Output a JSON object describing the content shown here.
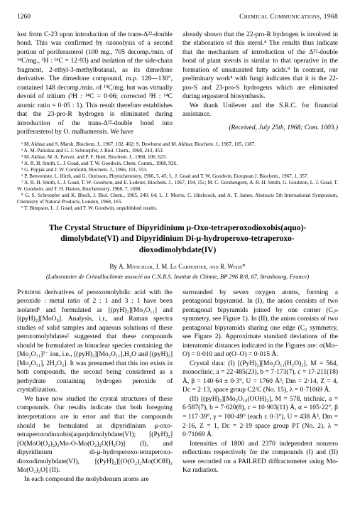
{
  "header": {
    "page_number": "1260",
    "running_title": "Chemical Communications, 1968"
  },
  "top_article": {
    "left_para": "lost from C-23 upon introduction of the trans-Δ²²-double bond. This was confirmed by ozonolysis of a second portion of poriferasterol (100 mg., 705 decomp./min. of ¹⁴C/mg., ³H : ¹⁴C = 12·93) and isolation of the side-chain fragment, 2-ethyl-3-methylbutanal, as its dimedone derivative. The dimedone compound, m.p. 128—130°, contained 148 decomp./min. of ¹⁴C/mg, but was virtually devoid of tritium (³H : ¹⁴C = 0·06; corrected ³H : ¹⁴C atomic ratio = 0·05 : 1). This result therefore establishes that the 23-pro-R hydrogen is eliminated during introduction of the trans-Δ²²-double bond into poriferasterol by O. malhamensis. We have",
    "right_para1": "already shown that the 22-pro-R hydrogen is involved in the elaboration of this sterol.⁴ The results thus indicate that the mechanism of introduction of the Δ²²-double bond of plant sterols is similar to that operative in the formation of unsaturated fatty acids.⁹ In contrast, our preliminary work⁴ with fungi indicates that it is the 22-pro-S and 23-pro-S hydrogens which are eliminated during ergosterol biosynthesis.",
    "right_para2": "We thank Unilever and the S.R.C. for financial assistance.",
    "received": "(Received, July 25th, 1968; Com. 1003.)"
  },
  "refs": {
    "r1": "¹ M. Akhtar and S. Marsh, Biochem. J., 1967, 102, 462; S. Dewhurst and M. Akhtar, Biochem. J., 1967, 105, 1187.",
    "r2": "² A. M. Paliokas and G. J. Schroepfer, J. Biol. Chem., 1968, 243, 453.",
    "r3": "³ M. Akhtar, M. A. Parvez, and P. F. Hunt, Biochem. J., 1968, 106, 623.",
    "r4": "⁴ A. R. H. Smith, L. J. Goad, and T. W. Goodwin, Chem. Comm., 1968, 926.",
    "r5": "⁵ G. Popjak and J. W. Cornforth, Biochem. J., 1966, 101, 553.",
    "r6": "⁶ P. Benveniste, L. Hirth, and G. Ourisson, Phytochemistry, 1966, 5, 45; L. J. Goad and T. W. Goodwin, European J. Biochem., 1967, 1, 357.",
    "r7": "⁷ A. R. H. Smith, L. J. Goad, T. W. Goodwin, and E. Lederer, Biochem. J., 1967, 104, 15c; M. C. Gershengorn, A. R. H. Smith, G. Goulston, L. J. Goad, T. W. Goodwin, and T. H. Haines, Biochemistry, 1968, 7, 1698.",
    "r8": "⁸ G. S. Schroepfer and K. Bloch, J. Biol. Chem., 1965, 240, 64; L. J. Morris, C. Hitchcock, and A. T. James, Abstracts 5th International Symposium, Chemistry of Natural Products, London, 1968, 165.",
    "r9": "⁹ T. Bimpson, L. J. Goad, and T. W. Goodwin, unpublished results."
  },
  "main_article": {
    "title": "The Crystal Structure of Dipyridinium μ-Oxo-tetraperoxodioxobis(aquo)-dimolybdate(VI) and Dipyridinium Di-μ-hydroperoxo-tetraperoxo-dioxodimolybdate(IV)",
    "authors_pre": "By ",
    "authors": "A. Mitschler, J. M. Le Carpentier, and R. Weiss*",
    "affil": "(Laboratoire de Cristallochimie associé au C.N.R.S. Institut de Chimie, BP 296 R/8, 67, Strasbourg, France)",
    "left": {
      "p1": "Pyridine derivatives of peroxomolybdic acid with the peroxide : metal ratio of 2 : 1 and 3 : 1 have been isolated¹ and formulated as [(pyH)₂][Mo₂O₁₁] and [(pyH)₂][MoO₈]. Analysis, i.r., and Raman spectra studies of solid samples and aqueous solutions of these peroxomolybdates² suggested that these compounds should be formulated as binuclear species containing the [Mo₂O₁₁]²⁻ ion, i.e., [(pyH)₂][Mo₂O₁₁],H₂O and [(pyH)₂][Mo₂O₁₁], 2H₂O₂]. It was presumed that this ion exists in both compounds, the second being considered as a perhydrate containing hydrogen peroxide of crystallization.",
      "p2": "We have now studied the crystal structures of these compounds. Our results indicate that both foregoing interpretations are in error and that the compounds should be formulated as dipyridinium μ-oxo-tetraperoxodioxobis(aquo)dimolybdate(VI); [(PyH)₂][O(MoO(O₂)₂)₂Mo-O-Mo(O₂)₂O(H₂O)] (I), and dipyridinium di-μ-hydroperoxo-tetraperoxo-dioxodimolybdate(VI), [(PyH)₂][(O(O₂)₂Mo(OOH)₂ Mo(O₂)₂O] (II).",
      "p3": "In each compound the molybdenum atoms are"
    },
    "right": {
      "p1": "surrounded by seven oxygen atoms, forming a pentagonal bipyramid. In (I), the anion consists of two pentagonal bipyramids joined by one corner (C₂ₕ symmetry, see Figure 1). In (II), the anion consists of two pentagonal bipyramids sharing one edge (C₂ symmetry, see Figure 2). Approximate standard deviations of the interatomic distances indicated in the Figures are: σ(Mo–O) = 0·010 and σ(O–O) = 0·015 Å.",
      "p2": "Crystal data: (I) [(PyH)₂][Mo₂O₁₁(H₂O)₂], M = 564, monoclinic, a = 22·485(23), b = 7·173(7), c = 17·211(18) Å, β = 140·64 ± 0·3°, U = 1760 Å³, Dm = 2·14, Z = 4, Dc = 2·13, space group C2/C (No. 15), λ = 0·71069 Å.",
      "p3": "(II) [(pyH)₂][Mo₂O₁₀(OOH)₂], M = 578, triclinic, a = 6·587(7), b = 7·620(8), c = 10·903(11) Å, α = 105·22°, β = 117·39°, γ = 100·49° (each ± 0·3°), U = 438 Å³, Dm = 2·16, Z = 1, Dc = 2·19 space group P1̄ (No. 2), λ = 0·71069 Å.",
      "p4": "Intensities of 1800 and 2370 independent nonzero reflections respectively for the compounds (I) and (II) were recorded on a PAILRED diffractometer using Mo-Kα radiation."
    }
  }
}
